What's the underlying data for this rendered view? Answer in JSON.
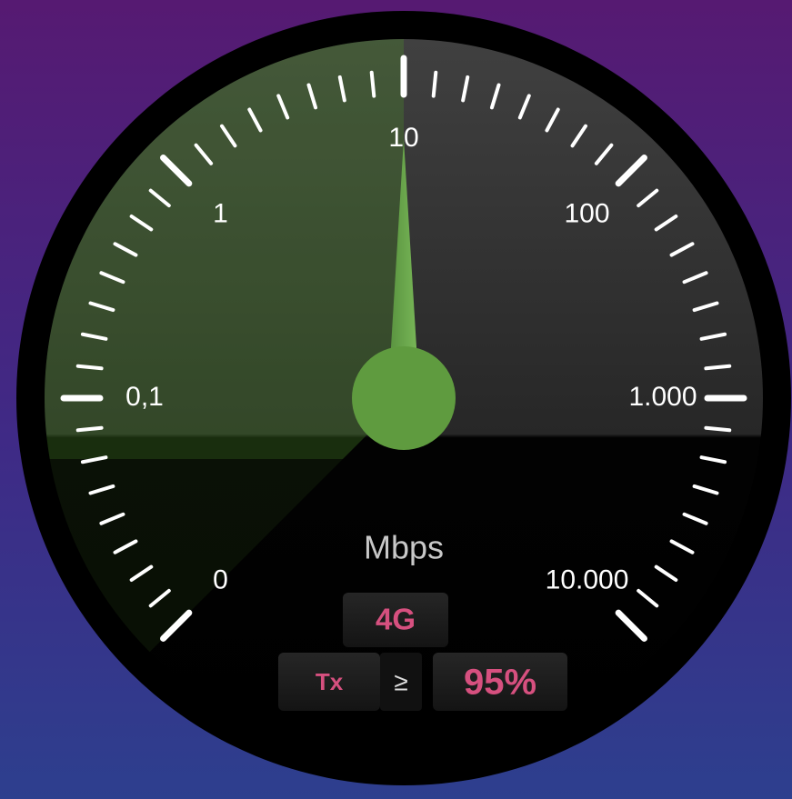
{
  "gauge": {
    "ticks": [
      {
        "value": 0,
        "label": "0"
      },
      {
        "value": 0.1,
        "label": "0,1"
      },
      1,
      10,
      100,
      {
        "value": 1000,
        "label": "1.000"
      },
      {
        "value": 10000,
        "label": "10.000"
      }
    ],
    "value": 10,
    "unit": "Mbps",
    "network": "4G",
    "direction": "Tx",
    "comparator": "≥",
    "percentile": "95%"
  }
}
